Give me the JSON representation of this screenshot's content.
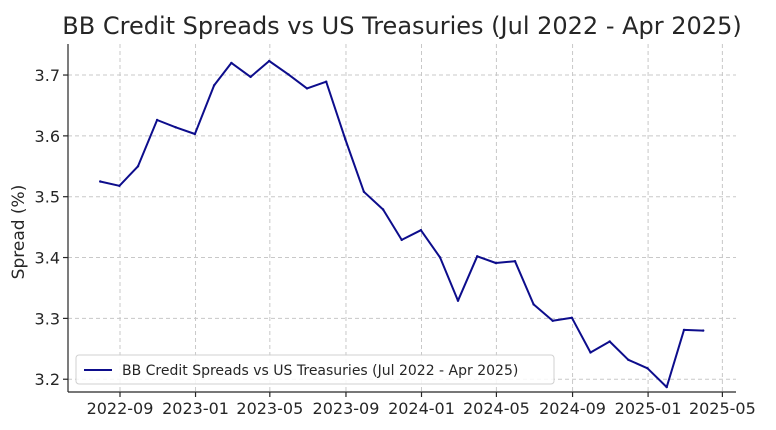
{
  "chart_data": {
    "type": "line",
    "title": "BB Credit Spreads vs US Treasuries (Jul 2022 - Apr 2025)",
    "xlabel": "",
    "ylabel": "Spread (%)",
    "x_ticks": [
      "2022-09",
      "2023-01",
      "2023-05",
      "2023-09",
      "2024-01",
      "2024-05",
      "2024-09",
      "2025-01",
      "2025-05"
    ],
    "y_ticks": [
      3.2,
      3.3,
      3.4,
      3.5,
      3.6,
      3.7
    ],
    "xlim": [
      "2022-06-09",
      "2025-05-23"
    ],
    "ylim": [
      3.179,
      3.751
    ],
    "grid": true,
    "legend_position": "bottom-left",
    "series": [
      {
        "name": "BB Credit Spreads vs US Treasuries (Jul 2022 - Apr 2025)",
        "color": "#0d0d8c",
        "points": [
          [
            "2022-07-31",
            3.525
          ],
          [
            "2022-08-31",
            3.518
          ],
          [
            "2022-09-30",
            3.55
          ],
          [
            "2022-10-31",
            3.626
          ],
          [
            "2022-11-30",
            3.614
          ],
          [
            "2022-12-31",
            3.603
          ],
          [
            "2023-01-31",
            3.683
          ],
          [
            "2023-02-28",
            3.72
          ],
          [
            "2023-03-31",
            3.697
          ],
          [
            "2023-04-30",
            3.723
          ],
          [
            "2023-05-31",
            3.701
          ],
          [
            "2023-06-30",
            3.678
          ],
          [
            "2023-07-31",
            3.689
          ],
          [
            "2023-08-31",
            3.594
          ],
          [
            "2023-09-30",
            3.508
          ],
          [
            "2023-10-31",
            3.479
          ],
          [
            "2023-11-30",
            3.429
          ],
          [
            "2023-12-31",
            3.445
          ],
          [
            "2024-01-31",
            3.4
          ],
          [
            "2024-02-29",
            3.329
          ],
          [
            "2024-03-31",
            3.402
          ],
          [
            "2024-04-30",
            3.391
          ],
          [
            "2024-05-31",
            3.394
          ],
          [
            "2024-06-30",
            3.323
          ],
          [
            "2024-07-31",
            3.296
          ],
          [
            "2024-08-31",
            3.301
          ],
          [
            "2024-09-30",
            3.244
          ],
          [
            "2024-10-31",
            3.262
          ],
          [
            "2024-11-30",
            3.232
          ],
          [
            "2024-12-31",
            3.218
          ],
          [
            "2025-01-31",
            3.187
          ],
          [
            "2025-02-28",
            3.281
          ],
          [
            "2025-03-31",
            3.28
          ]
        ]
      }
    ]
  }
}
